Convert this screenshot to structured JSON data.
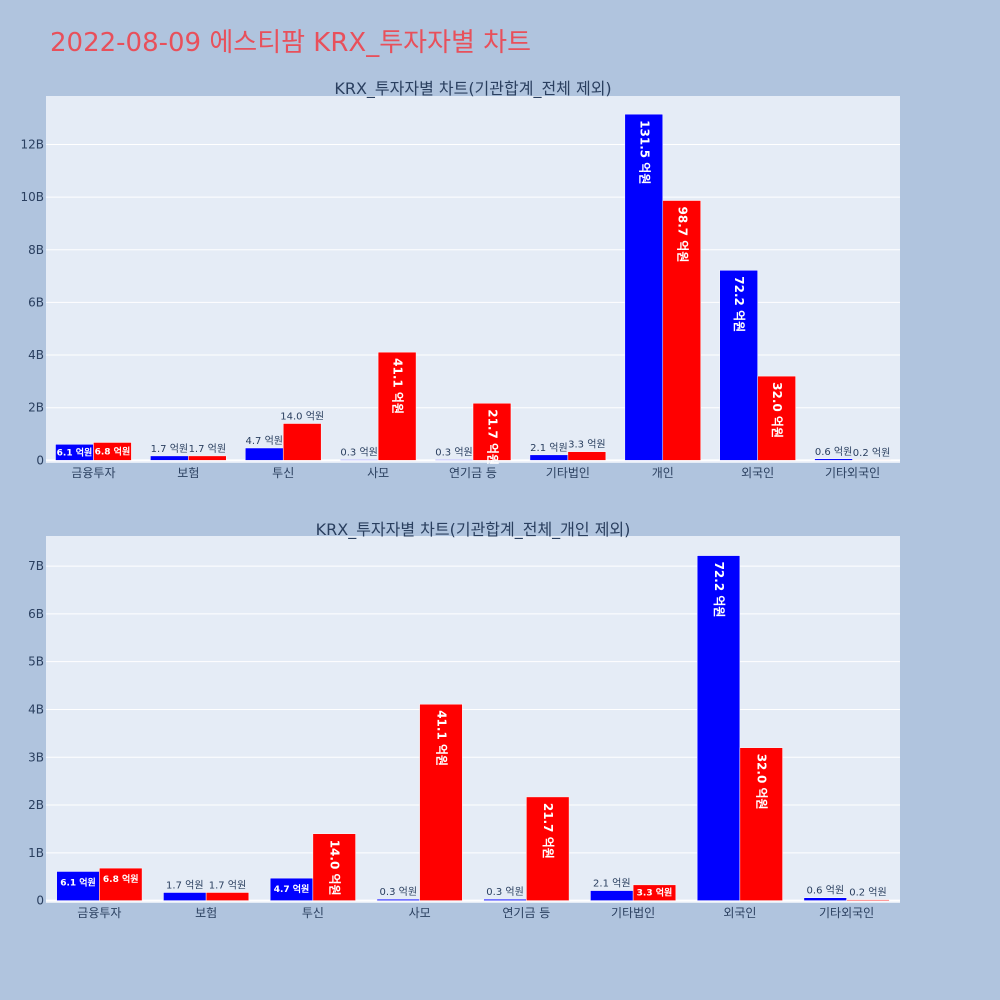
{
  "page": {
    "title": "2022-08-09 에스티팜 KRX_투자자별 차트",
    "colors": {
      "background": "#b0c4de",
      "plot_bg": "#e5ecf6",
      "title": "#e8505b",
      "buy": "#0000ff",
      "sell": "#ff0000"
    }
  },
  "chart_data": [
    {
      "type": "bar",
      "title": "KRX_투자자별 차트(기관합계_전체 제외)",
      "categories": [
        "금융투자",
        "보험",
        "투신",
        "사모",
        "연기금 등",
        "기타법인",
        "개인",
        "외국인",
        "기타외국인"
      ],
      "series": [
        {
          "color": "#0000ff",
          "values": [
            610000000,
            170000000,
            470000000,
            30000000,
            30000000,
            210000000,
            13150000000,
            7220000000,
            60000000
          ],
          "labels": [
            "6.1 억원",
            "1.7 억원",
            "4.7 억원",
            "0.3 억원",
            "0.3 억원",
            "2.1 억원",
            "131.5 억원",
            "72.2 억원",
            "0.6 억원"
          ]
        },
        {
          "color": "#ff0000",
          "values": [
            680000000,
            170000000,
            1400000000,
            4110000000,
            2170000000,
            330000000,
            9870000000,
            3200000000,
            20000000
          ],
          "labels": [
            "6.8 억원",
            "1.7 억원",
            "14.0 억원",
            "41.1 억원",
            "21.7 억원",
            "3.3 억원",
            "98.7 억원",
            "32.0 억원",
            "0.2 억원"
          ]
        }
      ],
      "y_ticks": [
        {
          "value": 0,
          "label": "0"
        },
        {
          "value": 2000000000,
          "label": "2B"
        },
        {
          "value": 4000000000,
          "label": "4B"
        },
        {
          "value": 6000000000,
          "label": "6B"
        },
        {
          "value": 8000000000,
          "label": "8B"
        },
        {
          "value": 10000000000,
          "label": "10B"
        },
        {
          "value": 12000000000,
          "label": "12B"
        }
      ],
      "ylim": [
        -100000000,
        13840000000
      ],
      "grid": true,
      "legend": "none"
    },
    {
      "type": "bar",
      "title": "KRX_투자자별 차트(기관합계_전체_개인 제외)",
      "categories": [
        "금융투자",
        "보험",
        "투신",
        "사모",
        "연기금 등",
        "기타법인",
        "외국인",
        "기타외국인"
      ],
      "series": [
        {
          "color": "#0000ff",
          "values": [
            610000000,
            170000000,
            470000000,
            30000000,
            30000000,
            210000000,
            7220000000,
            60000000
          ],
          "labels": [
            "6.1 억원",
            "1.7 억원",
            "4.7 억원",
            "0.3 억원",
            "0.3 억원",
            "2.1 억원",
            "72.2 억원",
            "0.6 억원"
          ]
        },
        {
          "color": "#ff0000",
          "values": [
            680000000,
            170000000,
            1400000000,
            4110000000,
            2170000000,
            330000000,
            3200000000,
            20000000
          ],
          "labels": [
            "6.8 억원",
            "1.7 억원",
            "14.0 억원",
            "41.1 억원",
            "21.7 억원",
            "3.3 억원",
            "32.0 억원",
            "0.2 억원"
          ]
        }
      ],
      "y_ticks": [
        {
          "value": 0,
          "label": "0"
        },
        {
          "value": 1000000000,
          "label": "1B"
        },
        {
          "value": 2000000000,
          "label": "2B"
        },
        {
          "value": 3000000000,
          "label": "3B"
        },
        {
          "value": 4000000000,
          "label": "4B"
        },
        {
          "value": 5000000000,
          "label": "5B"
        },
        {
          "value": 6000000000,
          "label": "6B"
        },
        {
          "value": 7000000000,
          "label": "7B"
        }
      ],
      "ylim": [
        -50000000,
        7630000000
      ],
      "grid": true,
      "legend": "none"
    }
  ]
}
